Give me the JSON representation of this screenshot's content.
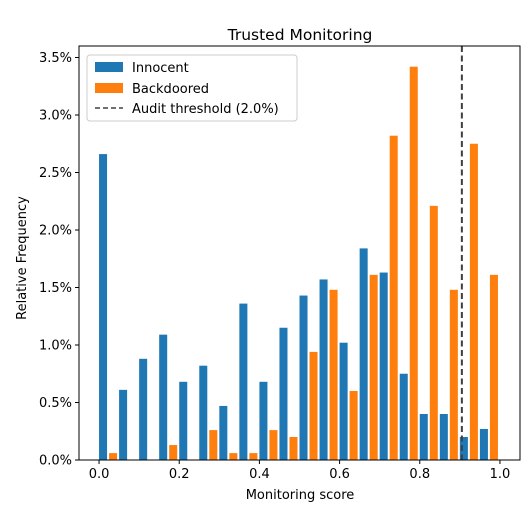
{
  "chart_data": {
    "type": "bar",
    "title": "Trusted Monitoring",
    "xlabel": "Monitoring score",
    "ylabel": "Relative Frequency",
    "xlim": [
      -0.05,
      1.05
    ],
    "ylim": [
      0,
      0.036
    ],
    "xticks": [
      0.0,
      0.2,
      0.4,
      0.6,
      0.8,
      1.0
    ],
    "xtick_labels": [
      "0.0",
      "0.2",
      "0.4",
      "0.6",
      "0.8",
      "1.0"
    ],
    "yticks": [
      0,
      0.005,
      0.01,
      0.015,
      0.02,
      0.025,
      0.03,
      0.035
    ],
    "ytick_labels": [
      "0.0%",
      "0.5%",
      "1.0%",
      "1.5%",
      "2.0%",
      "2.5%",
      "3.0%",
      "3.5%"
    ],
    "grid": false,
    "legend_position": "top-left",
    "bin_centers": [
      0.0,
      0.05,
      0.1,
      0.15,
      0.2,
      0.25,
      0.3,
      0.35,
      0.4,
      0.45,
      0.5,
      0.55,
      0.6,
      0.65,
      0.7,
      0.75,
      0.8,
      0.85,
      0.9,
      0.95,
      1.0
    ],
    "series": [
      {
        "name": "Innocent",
        "color": "#1f77b4",
        "values": [
          0.0266,
          0.0061,
          0.0088,
          0.0109,
          0.0068,
          0.0082,
          0.0047,
          0.0136,
          0.0068,
          0.0115,
          0.0143,
          0.0157,
          0.0102,
          0.0184,
          0.0163,
          0.0075,
          0.004,
          0.004,
          0.002,
          0.0027,
          0.0
        ]
      },
      {
        "name": "Backdoored",
        "color": "#ff7f0e",
        "values": [
          0.0006,
          0.0,
          0.0,
          0.0013,
          0.0,
          0.0026,
          0.0006,
          0.0006,
          0.0026,
          0.002,
          0.0094,
          0.0148,
          0.006,
          0.0161,
          0.0282,
          0.0342,
          0.0221,
          0.0148,
          0.0275,
          0.0161,
          0.0
        ]
      }
    ],
    "threshold": {
      "name": "Audit threshold (2.0%)",
      "x": 0.905,
      "color": "#404040",
      "style": "dashed"
    }
  }
}
